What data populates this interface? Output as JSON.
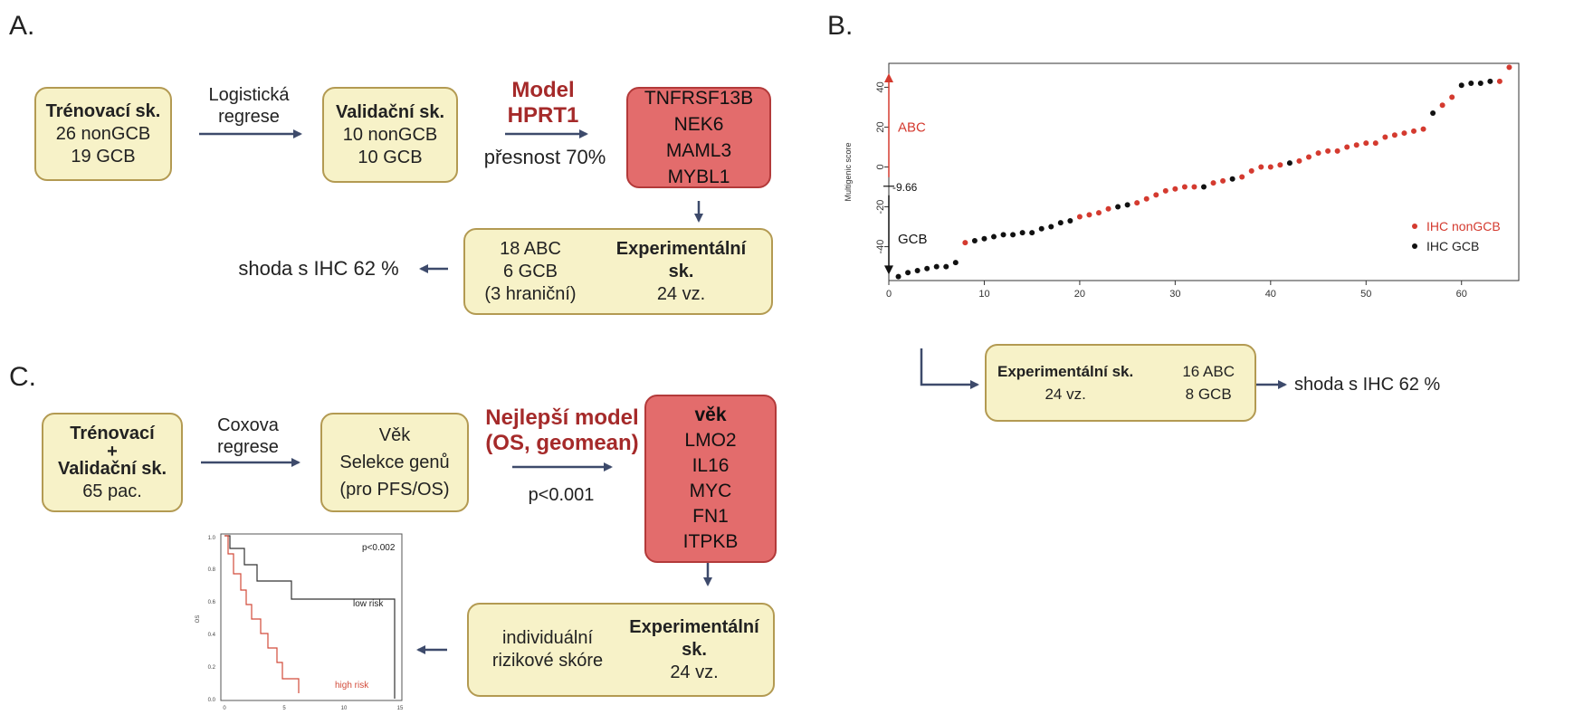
{
  "panels": {
    "a_label": "A.",
    "b_label": "B.",
    "c_label": "C."
  },
  "panel_a": {
    "training_box": [
      "Trénovací sk.",
      "26 nonGCB",
      "19 GCB"
    ],
    "method_label": [
      "Logistická",
      "regrese"
    ],
    "validation_box": [
      "Validační sk.",
      "10 nonGCB",
      "10 GCB"
    ],
    "model_title": [
      "Model",
      "HPRT1"
    ],
    "accuracy": "přesnost 70%",
    "genes": [
      "TNFRSF13B",
      "NEK6",
      "MAML3",
      "MYBL1"
    ],
    "experimental_box": {
      "title": "Experimentální sk.",
      "count": "24 vz."
    },
    "result_box": [
      "18 ABC",
      "6 GCB",
      "(3 hraniční)"
    ],
    "agreement": "shoda s IHC 62 %"
  },
  "panel_b": {
    "experimental_box": {
      "title": "Experimentální sk.",
      "count": "24 vz."
    },
    "result": [
      "16 ABC",
      "8 GCB"
    ],
    "agreement": "shoda s IHC 62 %"
  },
  "panel_c": {
    "training_box": [
      "Trénovací",
      "+",
      "Validační sk.",
      "65 pac."
    ],
    "method_label": [
      "Coxova",
      "regrese"
    ],
    "selection_box": [
      "Věk",
      "Selekce genů",
      "(pro PFS/OS)"
    ],
    "model_title": [
      "Nejlepší model",
      "(OS, geomean)"
    ],
    "pvalue": "p<0.001",
    "variables": [
      "věk",
      "LMO2",
      "IL16",
      "MYC",
      "FN1",
      "ITPKB"
    ],
    "experimental_box": [
      "Experimentální",
      "sk.",
      "24 vz."
    ],
    "risk_box": [
      "individuální",
      "rizikové skóre"
    ],
    "km_plot": {
      "pvalue": "p<0.002",
      "low_label": "low risk",
      "high_label": "high risk",
      "yticks": [
        "1.0",
        "0.8",
        "0.6",
        "0.4",
        "0.2",
        "0.0"
      ],
      "xticks": [
        "0",
        "5",
        "10",
        "15"
      ],
      "ylabel": "OS",
      "low_color": "#333333",
      "high_color": "#d24b3a"
    }
  },
  "chart_data": {
    "type": "scatter",
    "xlabel": "",
    "ylabel": "Multigenic score",
    "xlim": [
      0,
      66
    ],
    "ylim": [
      -57,
      52
    ],
    "xticks": [
      0,
      10,
      20,
      30,
      40,
      50,
      60
    ],
    "yticks": [
      -40,
      -20,
      0,
      20,
      40
    ],
    "threshold": -9.66,
    "threshold_label": "-9.66",
    "abc_label": "ABC",
    "gcb_label": "GCB",
    "legend_position": "bottom-right",
    "series": [
      {
        "name": "IHC nonGCB",
        "color": "#d43a2f",
        "x": [
          8,
          20,
          21,
          22,
          23,
          26,
          27,
          28,
          29,
          30,
          31,
          32,
          34,
          35,
          37,
          38,
          39,
          40,
          41,
          43,
          44,
          45,
          46,
          47,
          48,
          49,
          50,
          51,
          52,
          53,
          54,
          55,
          56,
          58,
          59,
          64,
          65
        ],
        "y": [
          -38,
          -25,
          -24,
          -23,
          -21,
          -18,
          -16,
          -14,
          -12,
          -11,
          -10,
          -10,
          -8,
          -7,
          -5,
          -2,
          0,
          0,
          1,
          3,
          5,
          7,
          8,
          8,
          10,
          11,
          12,
          12,
          15,
          16,
          17,
          18,
          19,
          31,
          35,
          43,
          50
        ]
      },
      {
        "name": "IHC GCB",
        "color": "#111111",
        "x": [
          1,
          2,
          3,
          4,
          5,
          6,
          7,
          9,
          10,
          11,
          12,
          13,
          14,
          15,
          16,
          17,
          18,
          19,
          24,
          25,
          33,
          36,
          42,
          57,
          60,
          61,
          62,
          63
        ],
        "y": [
          -55,
          -53,
          -52,
          -51,
          -50,
          -50,
          -48,
          -37,
          -36,
          -35,
          -34,
          -34,
          -33,
          -33,
          -31,
          -30,
          -28,
          -27,
          -20,
          -19,
          -10,
          -6,
          2,
          27,
          41,
          42,
          42,
          43
        ]
      }
    ]
  }
}
